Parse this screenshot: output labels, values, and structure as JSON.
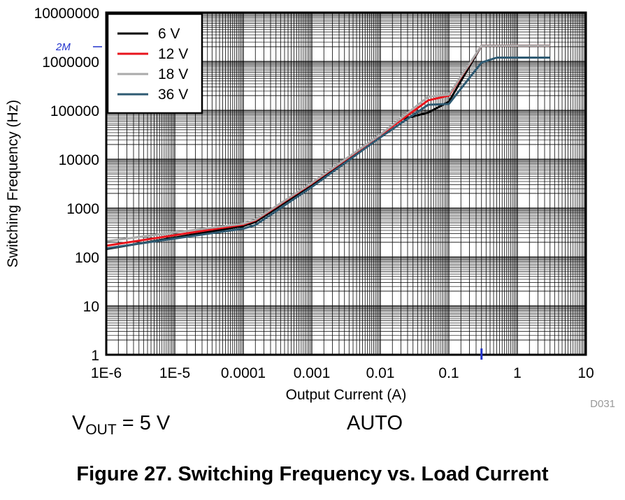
{
  "chart_data": {
    "type": "line",
    "xlabel": "Output Current (A)",
    "ylabel": "Switching Frequency (Hz)",
    "x_scale": "log",
    "y_scale": "log",
    "xlim": [
      1e-06,
      10
    ],
    "ylim": [
      1,
      10000000
    ],
    "x_tick_labels": [
      "1E-6",
      "1E-5",
      "0.0001",
      "0.001",
      "0.01",
      "0.1",
      "1",
      "10"
    ],
    "y_tick_labels": [
      "1",
      "10",
      "100",
      "1000",
      "10000",
      "100000",
      "1000000",
      "10000000"
    ],
    "grid": true,
    "legend_position": "top-left",
    "series": [
      {
        "name": "6 V",
        "color": "#000000",
        "x": [
          1e-06,
          0.0001,
          0.00015,
          0.001,
          0.01,
          0.02,
          0.05,
          0.1,
          0.3,
          3
        ],
        "y": [
          145,
          430,
          520,
          3000,
          30000,
          65000,
          90000,
          150000,
          2100000,
          2100000
        ]
      },
      {
        "name": "12 V",
        "color": "#e8141c",
        "x": [
          1e-06,
          0.0001,
          0.00015,
          0.001,
          0.01,
          0.05,
          0.1,
          0.3,
          3
        ],
        "y": [
          170,
          460,
          560,
          3200,
          31000,
          160000,
          200000,
          2100000,
          2100000
        ]
      },
      {
        "name": "18 V",
        "color": "#aaaaaa",
        "x": [
          1e-06,
          0.0001,
          0.00015,
          0.001,
          0.01,
          0.05,
          0.1,
          0.3,
          3
        ],
        "y": [
          210,
          480,
          580,
          3300,
          32000,
          190000,
          210000,
          2100000,
          2100000
        ]
      },
      {
        "name": "36 V",
        "color": "#2e5a72",
        "x": [
          1e-06,
          0.0001,
          0.00015,
          0.001,
          0.01,
          0.05,
          0.1,
          0.3,
          0.5,
          3
        ],
        "y": [
          150,
          380,
          450,
          2700,
          28000,
          130000,
          135000,
          950000,
          1200000,
          1200000
        ]
      }
    ]
  },
  "annotation": {
    "text": "2M",
    "marker_x": 0.3
  },
  "conditions": {
    "vout_prefix": "V",
    "vout_sub": "OUT",
    "vout_value": " = 5 V",
    "mode": "AUTO"
  },
  "doc_id": "D031",
  "caption": "Figure 27. Switching Frequency vs. Load Current"
}
